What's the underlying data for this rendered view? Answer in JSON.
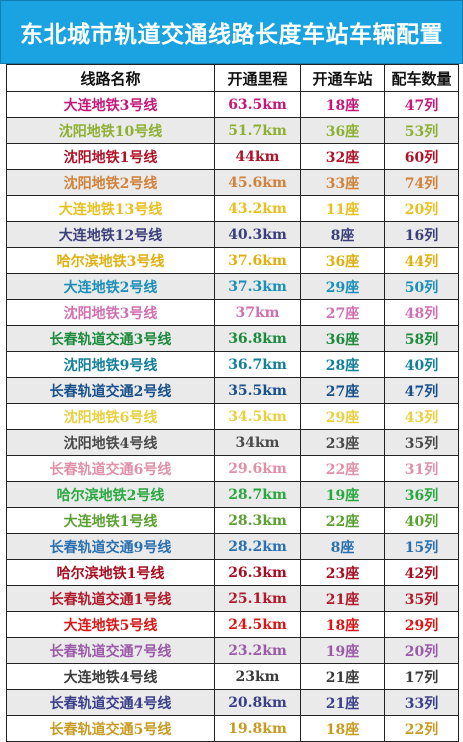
{
  "title": "东北城市轨道交通线路长度车站车辆配置",
  "headers": [
    "线路名称",
    "开通里程",
    "开通车站",
    "配车数量"
  ],
  "rows": [
    {
      "name": "大连地铁3号线",
      "length": "63.5km",
      "stations": "18座",
      "vehicles": "47列",
      "color": "#c4187a"
    },
    {
      "name": "沈阳地铁10号线",
      "length": "51.7km",
      "stations": "36座",
      "vehicles": "53列",
      "color": "#8db034"
    },
    {
      "name": "沈阳地铁1号线",
      "length": "44km",
      "stations": "32座",
      "vehicles": "60列",
      "color": "#b01228"
    },
    {
      "name": "沈阳地铁2号线",
      "length": "45.6km",
      "stations": "33座",
      "vehicles": "74列",
      "color": "#d0823a"
    },
    {
      "name": "大连地铁13号线",
      "length": "43.2km",
      "stations": "11座",
      "vehicles": "20列",
      "color": "#e8c020"
    },
    {
      "name": "大连地铁12号线",
      "length": "40.3km",
      "stations": "8座",
      "vehicles": "16列",
      "color": "#3a3f7a"
    },
    {
      "name": "哈尔滨地铁3号线",
      "length": "37.6km",
      "stations": "36座",
      "vehicles": "44列",
      "color": "#e0b010"
    },
    {
      "name": "大连地铁2号线",
      "length": "37.3km",
      "stations": "29座",
      "vehicles": "50列",
      "color": "#1a8fb8"
    },
    {
      "name": "沈阳地铁3号线",
      "length": "37km",
      "stations": "27座",
      "vehicles": "48列",
      "color": "#d070b0"
    },
    {
      "name": "长春轨道交通3号线",
      "length": "36.8km",
      "stations": "36座",
      "vehicles": "58列",
      "color": "#1c8a3c"
    },
    {
      "name": "沈阳地铁9号线",
      "length": "36.7km",
      "stations": "28座",
      "vehicles": "40列",
      "color": "#13809a"
    },
    {
      "name": "长春轨道交通2号线",
      "length": "35.5km",
      "stations": "27座",
      "vehicles": "47列",
      "color": "#17508a"
    },
    {
      "name": "沈阳地铁6号线",
      "length": "34.5km",
      "stations": "29座",
      "vehicles": "43列",
      "color": "#e8d040"
    },
    {
      "name": "沈阳地铁4号线",
      "length": "34km",
      "stations": "23座",
      "vehicles": "35列",
      "color": "#4a4a4a"
    },
    {
      "name": "长春轨道交通6号线",
      "length": "29.6km",
      "stations": "22座",
      "vehicles": "31列",
      "color": "#e090a8"
    },
    {
      "name": "哈尔滨地铁2号线",
      "length": "28.7km",
      "stations": "19座",
      "vehicles": "36列",
      "color": "#2aa840"
    },
    {
      "name": "大连地铁1号线",
      "length": "28.3km",
      "stations": "22座",
      "vehicles": "40列",
      "color": "#5aa030"
    },
    {
      "name": "长春轨道交通9号线",
      "length": "28.2km",
      "stations": "8座",
      "vehicles": "15列",
      "color": "#2a70b0"
    },
    {
      "name": "哈尔滨地铁1号线",
      "length": "26.3km",
      "stations": "23座",
      "vehicles": "42列",
      "color": "#a80c20"
    },
    {
      "name": "长春轨道交通1号线",
      "length": "25.1km",
      "stations": "21座",
      "vehicles": "35列",
      "color": "#b01a2a"
    },
    {
      "name": "大连地铁5号线",
      "length": "24.5km",
      "stations": "18座",
      "vehicles": "29列",
      "color": "#d81818"
    },
    {
      "name": "长春轨道交通7号线",
      "length": "23.2km",
      "stations": "19座",
      "vehicles": "20列",
      "color": "#9a5aa8"
    },
    {
      "name": "大连地铁4号线",
      "length": "23km",
      "stations": "21座",
      "vehicles": "17列",
      "color": "#3a3a3a"
    },
    {
      "name": "长春轨道交通4号线",
      "length": "20.8km",
      "stations": "21座",
      "vehicles": "33列",
      "color": "#3a3f8a"
    },
    {
      "name": "长春轨道交通5号线",
      "length": "19.8km",
      "stations": "18座",
      "vehicles": "22列",
      "color": "#c89a20"
    }
  ]
}
